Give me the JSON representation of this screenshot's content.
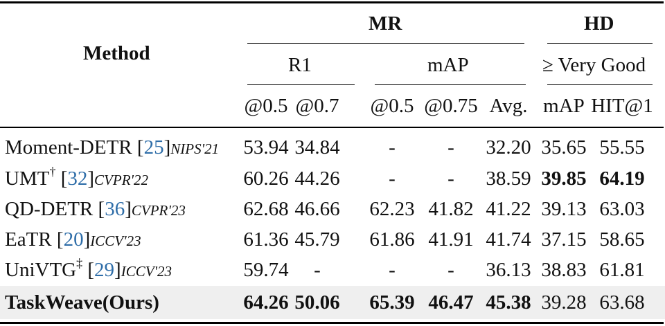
{
  "table": {
    "header": {
      "method": "Method",
      "group_mr": "MR",
      "group_hd": "HD",
      "sub_r1": "R1",
      "sub_map": "mAP",
      "sub_vg": "≥ Very Good",
      "cols": [
        "@0.5",
        "@0.7",
        "@0.5",
        "@0.75",
        "Avg.",
        "mAP",
        "HIT@1"
      ]
    },
    "rows": [
      {
        "name": "Moment-DETR",
        "sup": "",
        "cite": "25",
        "venue": "NIPS'21",
        "values": [
          "53.94",
          "34.84",
          "-",
          "-",
          "32.20",
          "35.65",
          "55.55"
        ],
        "bold": []
      },
      {
        "name": "UMT",
        "sup": "†",
        "cite": "32",
        "venue": "CVPR'22",
        "values": [
          "60.26",
          "44.26",
          "-",
          "-",
          "38.59",
          "39.85",
          "64.19"
        ],
        "bold": [
          5,
          6
        ]
      },
      {
        "name": "QD-DETR",
        "sup": "",
        "cite": "36",
        "venue": "CVPR'23",
        "values": [
          "62.68",
          "46.66",
          "62.23",
          "41.82",
          "41.22",
          "39.13",
          "63.03"
        ],
        "bold": []
      },
      {
        "name": "EaTR",
        "sup": "",
        "cite": "20",
        "venue": "ICCV'23",
        "values": [
          "61.36",
          "45.79",
          "61.86",
          "41.91",
          "41.74",
          "37.15",
          "58.65"
        ],
        "bold": []
      },
      {
        "name": "UniVTG",
        "sup": "‡",
        "cite": "29",
        "venue": "ICCV'23",
        "values": [
          "59.74",
          "-",
          "-",
          "-",
          "36.13",
          "38.83",
          "61.81"
        ],
        "bold": []
      },
      {
        "name": "TaskWeave(Ours)",
        "sup": "",
        "cite": "",
        "venue": "",
        "values": [
          "64.26",
          "50.06",
          "65.39",
          "46.47",
          "45.38",
          "39.28",
          "63.68"
        ],
        "bold": [
          0,
          1,
          2,
          3,
          4
        ],
        "highlight": true,
        "name_bold": true
      }
    ]
  }
}
